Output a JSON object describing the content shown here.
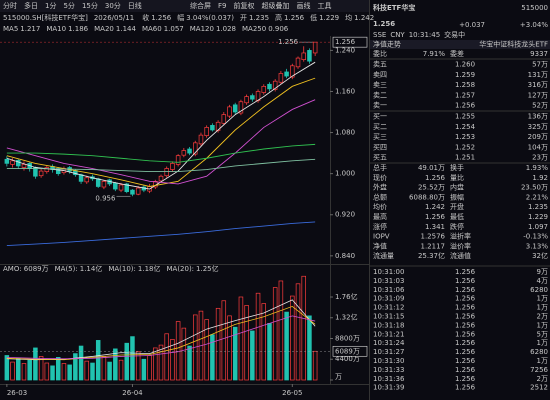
{
  "toolbar": {
    "tabs": [
      "分时",
      "多日",
      "1分",
      "5分",
      "15分",
      "30分",
      "日线"
    ],
    "tools": [
      "综合屏",
      "F9",
      "前复权",
      "超级叠加",
      "画线",
      "工具"
    ]
  },
  "info": {
    "symbol": "515000.SH[科技ETF华宝]",
    "date": "2026/05/11",
    "items": [
      {
        "label": "收",
        "value": "1.256"
      },
      {
        "label": "幅",
        "value": "3.04%(0.037)"
      },
      {
        "label": "开",
        "value": "1.235"
      },
      {
        "label": "高",
        "value": "1.256"
      },
      {
        "label": "低",
        "value": "1.229"
      },
      {
        "label": "均",
        "value": "1.242"
      }
    ]
  },
  "kline": {
    "type": "candlestick",
    "categories": [
      "26-03",
      null,
      null,
      null,
      null,
      null,
      null,
      null,
      null,
      null,
      null,
      null,
      null,
      null,
      null,
      null,
      null,
      null,
      null,
      null,
      null,
      null,
      "26-04",
      null,
      null,
      null,
      null,
      null,
      null,
      null,
      null,
      null,
      null,
      null,
      null,
      null,
      null,
      null,
      null,
      null,
      null,
      null,
      null,
      null,
      null,
      null,
      null,
      null,
      null,
      null,
      "26-05",
      null,
      null,
      null,
      null
    ],
    "open": [
      1.028,
      1.018,
      1.026,
      1.012,
      1.02,
      1.012,
      0.996,
      1.004,
      1.014,
      1.01,
      1.002,
      1.012,
      1.006,
      0.998,
      0.984,
      0.994,
      0.99,
      0.974,
      0.988,
      0.982,
      0.968,
      0.98,
      0.968,
      0.96,
      0.974,
      0.966,
      0.974,
      0.986,
      0.996,
      1.008,
      1.018,
      1.036,
      1.048,
      1.038,
      1.058,
      1.074,
      1.094,
      1.084,
      1.098,
      1.112,
      1.134,
      1.118,
      1.138,
      1.152,
      1.142,
      1.158,
      1.174,
      1.164,
      1.178,
      1.198,
      1.188,
      1.208,
      1.222,
      1.24,
      1.235
    ],
    "high": [
      1.034,
      1.03,
      1.028,
      1.024,
      1.022,
      1.014,
      1.01,
      1.016,
      1.018,
      1.012,
      1.014,
      1.015,
      1.008,
      1.0,
      0.996,
      0.998,
      0.992,
      0.988,
      0.99,
      0.984,
      0.982,
      0.982,
      0.97,
      0.976,
      0.978,
      0.98,
      0.988,
      0.998,
      1.014,
      1.024,
      1.038,
      1.05,
      1.052,
      1.064,
      1.08,
      1.094,
      1.098,
      1.104,
      1.12,
      1.134,
      1.138,
      1.144,
      1.154,
      1.156,
      1.164,
      1.174,
      1.178,
      1.184,
      1.2,
      1.204,
      1.214,
      1.228,
      1.248,
      1.244,
      1.256
    ],
    "low": [
      1.014,
      1.012,
      1.01,
      1.006,
      1.004,
      0.99,
      0.992,
      1.0,
      1.002,
      0.996,
      0.998,
      1.0,
      0.994,
      0.98,
      0.98,
      0.986,
      0.972,
      0.97,
      0.976,
      0.966,
      0.964,
      0.962,
      0.956,
      0.958,
      0.964,
      0.962,
      0.97,
      0.982,
      0.992,
      1.004,
      1.014,
      1.032,
      1.036,
      1.034,
      1.054,
      1.07,
      1.082,
      1.08,
      1.094,
      1.108,
      1.116,
      1.114,
      1.134,
      1.14,
      1.138,
      1.154,
      1.16,
      1.16,
      1.174,
      1.186,
      1.184,
      1.204,
      1.218,
      1.214,
      1.229
    ],
    "close": [
      1.02,
      1.025,
      1.015,
      1.018,
      1.01,
      0.995,
      1.005,
      1.012,
      1.008,
      1.0,
      1.01,
      1.005,
      0.998,
      0.985,
      0.992,
      0.99,
      0.975,
      0.985,
      0.98,
      0.97,
      0.978,
      0.965,
      0.96,
      0.972,
      0.968,
      0.975,
      0.985,
      0.995,
      1.01,
      1.02,
      1.035,
      1.045,
      1.04,
      1.06,
      1.075,
      1.09,
      1.085,
      1.1,
      1.115,
      1.13,
      1.12,
      1.14,
      1.15,
      1.145,
      1.16,
      1.17,
      1.165,
      1.18,
      1.195,
      1.19,
      1.21,
      1.225,
      1.235,
      1.219,
      1.256
    ],
    "up_color": "#ff3d3d",
    "down_color": "#21c3b0",
    "ylim": [
      0.828,
      1.268
    ],
    "yticks": [
      {
        "value": 1.24,
        "label": "1.240"
      },
      {
        "value": 1.16,
        "label": "1.160"
      },
      {
        "value": 1.08,
        "label": "1.080"
      },
      {
        "value": 1.0,
        "label": "1.000"
      },
      {
        "value": 0.92,
        "label": "0.920"
      },
      {
        "value": 0.84,
        "label": "0.840"
      }
    ],
    "series": [
      {
        "name": "MA5",
        "color": "#e6e6e6",
        "x": [
          0,
          5,
          10,
          15,
          20,
          25,
          30,
          35,
          40,
          45,
          50,
          54
        ],
        "values": [
          1.03,
          1.012,
          1.006,
          0.992,
          0.98,
          0.97,
          1.005,
          1.065,
          1.115,
          1.15,
          1.19,
          1.217
        ]
      },
      {
        "name": "MA10",
        "color": "#f0c020",
        "x": [
          0,
          5,
          10,
          15,
          20,
          25,
          30,
          35,
          40,
          45,
          50,
          54
        ],
        "values": [
          1.035,
          1.02,
          1.01,
          1.0,
          0.988,
          0.975,
          0.985,
          1.03,
          1.085,
          1.13,
          1.17,
          1.186
        ]
      },
      {
        "name": "MA20",
        "color": "#d050d0",
        "x": [
          0,
          5,
          10,
          15,
          20,
          25,
          30,
          35,
          40,
          45,
          50,
          54
        ],
        "values": [
          1.05,
          1.035,
          1.02,
          1.01,
          0.998,
          0.985,
          0.98,
          0.995,
          1.04,
          1.09,
          1.125,
          1.144
        ]
      },
      {
        "name": "MA60",
        "color": "#30c050",
        "x": [
          0,
          5,
          10,
          15,
          20,
          25,
          30,
          35,
          40,
          45,
          50,
          54
        ],
        "values": [
          1.04,
          1.04,
          1.038,
          1.035,
          1.03,
          1.025,
          1.022,
          1.03,
          1.04,
          1.048,
          1.054,
          1.057
        ]
      },
      {
        "name": "MA120",
        "color": "#7fc0a0",
        "x": [
          0,
          5,
          10,
          15,
          20,
          25,
          30,
          35,
          40,
          45,
          50,
          54
        ],
        "values": [
          1.01,
          1.01,
          1.009,
          1.008,
          1.006,
          1.004,
          1.004,
          1.008,
          1.015,
          1.02,
          1.025,
          1.028
        ]
      },
      {
        "name": "MA250",
        "color": "#3a6bdc",
        "x": [
          0,
          5,
          10,
          15,
          20,
          25,
          30,
          35,
          40,
          45,
          50,
          54
        ],
        "values": [
          0.86,
          0.863,
          0.866,
          0.87,
          0.874,
          0.878,
          0.882,
          0.887,
          0.893,
          0.898,
          0.903,
          0.906
        ]
      }
    ]
  },
  "volume": {
    "type": "bar",
    "title": "AMO: 6089万",
    "values": [
      5200,
      3800,
      4600,
      3500,
      4200,
      6800,
      5000,
      3600,
      3000,
      4800,
      3500,
      3200,
      5600,
      7200,
      4000,
      3600,
      8400,
      5000,
      3800,
      6600,
      4200,
      7800,
      9200,
      6000,
      4400,
      5200,
      6800,
      7400,
      9800,
      8600,
      12400,
      11000,
      7200,
      13800,
      14600,
      12800,
      9600,
      15200,
      16800,
      13600,
      11200,
      17600,
      15800,
      10400,
      18400,
      16200,
      12000,
      19600,
      21000,
      14400,
      17800,
      20400,
      22000,
      13600,
      6089
    ],
    "ylim": [
      0,
      22900
    ],
    "yticks": [
      {
        "value": 17600,
        "label": "1.76亿"
      },
      {
        "value": 13200,
        "label": "1.32亿"
      },
      {
        "value": 8800,
        "label": "8800万"
      },
      {
        "value": 4400,
        "label": "4400万"
      },
      {
        "value": 0,
        "label": "万"
      }
    ],
    "marker": {
      "value": 6089,
      "label": "6089万"
    },
    "series": [
      {
        "name": "MA(5):",
        "label": "1.14亿",
        "color": "#e6e6e6",
        "x": [
          0,
          5,
          10,
          15,
          20,
          25,
          30,
          35,
          40,
          45,
          50,
          54
        ],
        "values": [
          4500,
          4300,
          4400,
          5000,
          5800,
          5600,
          7800,
          10800,
          12600,
          14200,
          17000,
          11400
        ]
      },
      {
        "name": "MA(10):",
        "label": "1.18亿",
        "color": "#f0c020",
        "x": [
          0,
          5,
          10,
          15,
          20,
          25,
          30,
          35,
          40,
          45,
          50,
          54
        ],
        "values": [
          4600,
          4400,
          4300,
          4800,
          5300,
          5400,
          6800,
          9200,
          11800,
          13400,
          15600,
          11800
        ]
      },
      {
        "name": "MA(20):",
        "label": "1.25亿",
        "color": "#d050d0",
        "x": [
          0,
          5,
          10,
          15,
          20,
          25,
          30,
          35,
          40,
          45,
          50,
          54
        ],
        "values": [
          4800,
          4600,
          4500,
          4600,
          5000,
          5200,
          6000,
          7600,
          9600,
          11600,
          13600,
          12500
        ]
      }
    ]
  },
  "quote": {
    "name": "科技ETF华宝",
    "code": "515000",
    "price": "1.256",
    "change": "+0.037",
    "pct": "+3.04%",
    "meta": [
      "SSE",
      "CNY",
      "10:31:45",
      "交易中"
    ],
    "tab": "净值走势",
    "fund": "华宝中证科技龙头ETF"
  },
  "order_book": {
    "ratio": [
      "委比",
      "7.91%",
      "委差",
      "9337"
    ],
    "asks": [
      [
        "卖五",
        "1.260",
        "57万"
      ],
      [
        "卖四",
        "1.259",
        "131万"
      ],
      [
        "卖三",
        "1.258",
        "316万"
      ],
      [
        "卖二",
        "1.257",
        "127万"
      ],
      [
        "卖一",
        "1.256",
        "52万"
      ]
    ],
    "bids": [
      [
        "买一",
        "1.255",
        "136万"
      ],
      [
        "买二",
        "1.254",
        "325万"
      ],
      [
        "买三",
        "1.253",
        "209万"
      ],
      [
        "买四",
        "1.252",
        "104万"
      ],
      [
        "买五",
        "1.251",
        "23万"
      ]
    ]
  },
  "stats": {
    "rows": [
      [
        "总手",
        "49.01万",
        "换手",
        "1.93%"
      ],
      [
        "现价",
        "1.256",
        "量比",
        "1.92"
      ],
      [
        "外盘",
        "25.52万",
        "内盘",
        "23.50万"
      ],
      [
        "总额",
        "6088.80万",
        "振幅",
        "2.21%"
      ],
      [
        "均价",
        "1.242",
        "开盘",
        "1.235"
      ],
      [
        "最高",
        "1.256",
        "最低",
        "1.229"
      ],
      [
        "涨停",
        "1.341",
        "跌停",
        "1.097"
      ],
      [
        "IOPV",
        "1.2576",
        "溢折率",
        "-0.13%"
      ],
      [
        "净值",
        "1.2117",
        "溢价率",
        "3.13%"
      ],
      [
        "流通量",
        "25.37亿",
        "流通值",
        "32亿"
      ]
    ],
    "colors": [
      [
        "#e8e8e8",
        "#e8e8e8"
      ],
      [
        "#ff3d3d",
        "#e8e8e8"
      ],
      [
        "#ff3d3d",
        "#2ec26a"
      ],
      [
        "#e8e8e8",
        "#e8e8e8"
      ],
      [
        "#ff3d3d",
        "#ff3d3d"
      ],
      [
        "#ff3d3d",
        "#ff3d3d"
      ],
      [
        "#ff3d3d",
        "#2ec26a"
      ],
      [
        "#ff3d3d",
        "#2ec26a"
      ],
      [
        "#e8e8e8",
        "#ff3d3d"
      ],
      [
        "#e8e8e8",
        "#e8e8e8"
      ]
    ]
  },
  "ticks": {
    "rows": [
      [
        "10:31:00",
        "1.256",
        "9万"
      ],
      [
        "10:31:03",
        "1.256",
        "4万"
      ],
      [
        "10:31:06",
        "1.256",
        "6280"
      ],
      [
        "10:31:09",
        "1.256",
        "1万"
      ],
      [
        "10:31:12",
        "1.256",
        "1万"
      ],
      [
        "10:31:15",
        "1.256",
        "2万"
      ],
      [
        "10:31:18",
        "1.256",
        "1万"
      ],
      [
        "10:31:21",
        "1.256",
        "5万"
      ],
      [
        "10:31:24",
        "1.256",
        "1万"
      ],
      [
        "10:31:27",
        "1.256",
        "6280"
      ],
      [
        "10:31:30",
        "1.256",
        "1万"
      ],
      [
        "10:31:33",
        "1.256",
        "7256"
      ],
      [
        "10:31:36",
        "1.256",
        "2万"
      ],
      [
        "10:31:39",
        "1.256",
        "2512"
      ]
    ]
  }
}
